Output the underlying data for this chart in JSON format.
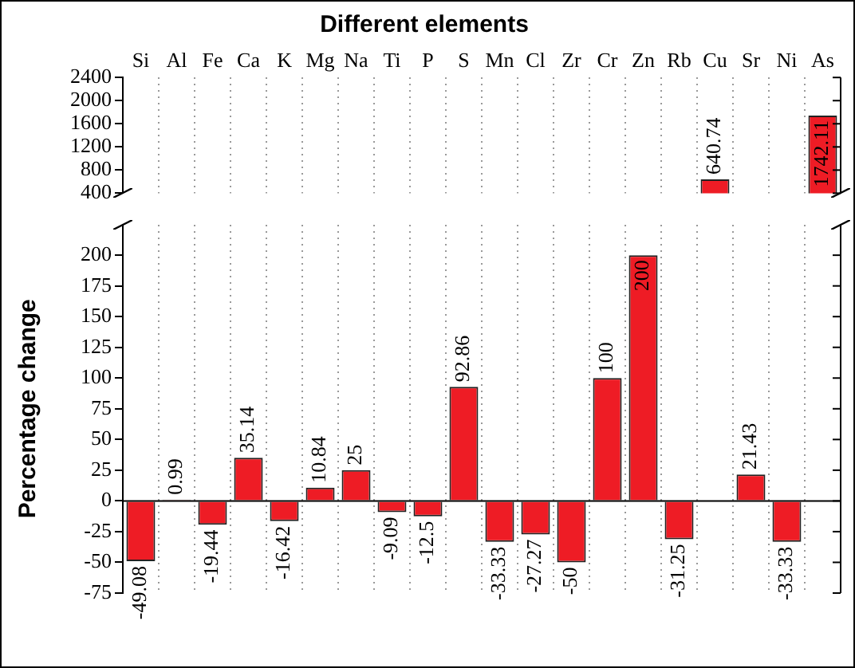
{
  "chart_data": [
    {
      "type": "bar",
      "title": "Different elements",
      "categories": [
        "Si",
        "Al",
        "Fe",
        "Ca",
        "K",
        "Mg",
        "Na",
        "Ti",
        "P",
        "S",
        "Mn",
        "Cl",
        "Zr",
        "Cr",
        "Zn",
        "Rb",
        "Cu",
        "Sr",
        "Ni",
        "As"
      ],
      "values": [
        null,
        null,
        null,
        null,
        null,
        null,
        null,
        null,
        null,
        null,
        null,
        null,
        null,
        null,
        null,
        null,
        640.74,
        null,
        null,
        1742.11
      ],
      "color": "#ee1c25",
      "ylim": [
        400,
        2400
      ],
      "yticks": [
        400,
        800,
        1200,
        1600,
        2000,
        2400
      ],
      "grid": "x",
      "data_labels": true
    },
    {
      "type": "bar",
      "ylabel": "Percentage change",
      "categories": [
        null,
        null,
        null,
        null,
        null,
        null,
        null,
        null,
        null,
        null,
        null,
        null,
        null,
        null,
        null,
        null,
        null,
        null,
        null,
        null
      ],
      "values": [
        -49.08,
        0.99,
        -19.44,
        35.14,
        -16.42,
        10.84,
        25,
        -9.09,
        -12.5,
        92.86,
        -33.33,
        -27.27,
        -50,
        100,
        200,
        -31.25,
        null,
        21.43,
        -33.33,
        null
      ],
      "color": "#ee1c25",
      "ylim": [
        -75,
        225
      ],
      "yticks": [
        -75,
        -50,
        -25,
        0,
        25,
        50,
        75,
        100,
        125,
        150,
        175,
        200
      ],
      "grid": "x",
      "data_labels": true,
      "tick_labels": "y"
    }
  ]
}
